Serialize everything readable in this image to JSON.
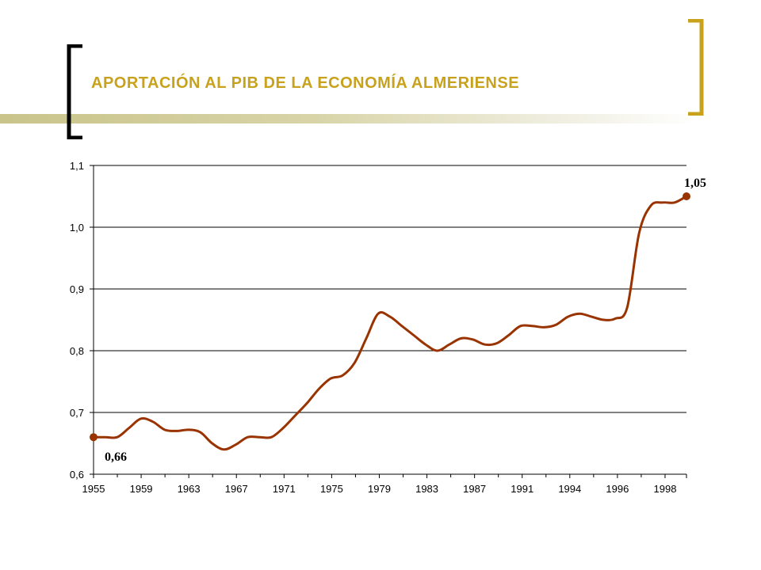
{
  "slide": {
    "title": "APORTACIÓN AL PIB DE LA ECONOMÍA ALMERIENSE",
    "colors": {
      "title": "#c8a21c",
      "bracket_left": "#000000",
      "bracket_right": "#c8a21c",
      "line": "#993300",
      "band": "#c9c48a"
    }
  },
  "chart_data": {
    "type": "line",
    "title": "",
    "xlabel": "",
    "ylabel": "",
    "ylim": [
      0.6,
      1.1
    ],
    "y_ticks": [
      "0,6",
      "0,7",
      "0,8",
      "0,9",
      "1,0",
      "1,1"
    ],
    "y_tick_values": [
      0.6,
      0.7,
      0.8,
      0.9,
      1.0,
      1.1
    ],
    "x_tick_labels": [
      "1955",
      "1959",
      "1963",
      "1967",
      "1971",
      "1975",
      "1979",
      "1983",
      "1987",
      "1991",
      "1994",
      "1996",
      "1998"
    ],
    "categories": [
      "1955",
      "1956",
      "1957",
      "1958",
      "1959",
      "1960",
      "1961",
      "1962",
      "1963",
      "1964",
      "1965",
      "1966",
      "1967",
      "1968",
      "1969",
      "1970",
      "1971",
      "1972",
      "1973",
      "1974",
      "1975",
      "1976",
      "1977",
      "1978",
      "1979",
      "1980",
      "1981",
      "1982",
      "1983",
      "1984",
      "1985",
      "1986",
      "1987",
      "1988",
      "1989",
      "1990",
      "1991",
      "1992",
      "1993",
      "1994",
      "1995",
      "1995b",
      "1996",
      "1996b",
      "1997",
      "1997b",
      "1998",
      "1998b",
      "1999",
      "1999b",
      "2000"
    ],
    "series": [
      {
        "values": [
          0.66,
          0.66,
          0.66,
          0.675,
          0.69,
          0.685,
          0.672,
          0.67,
          0.672,
          0.668,
          0.65,
          0.64,
          0.648,
          0.66,
          0.66,
          0.66,
          0.675,
          0.695,
          0.715,
          0.738,
          0.755,
          0.76,
          0.78,
          0.82,
          0.86,
          0.855,
          0.84,
          0.825,
          0.81,
          0.8,
          0.81,
          0.82,
          0.818,
          0.81,
          0.812,
          0.825,
          0.84,
          0.84,
          0.838,
          0.842,
          0.855,
          0.86,
          0.855,
          0.85,
          0.852,
          0.87,
          0.99,
          1.035,
          1.04,
          1.04,
          1.05
        ]
      }
    ],
    "annotations": [
      {
        "text": "0,66",
        "point": "first"
      },
      {
        "text": "1,05",
        "point": "last"
      }
    ],
    "grid": true,
    "legend": "none"
  }
}
